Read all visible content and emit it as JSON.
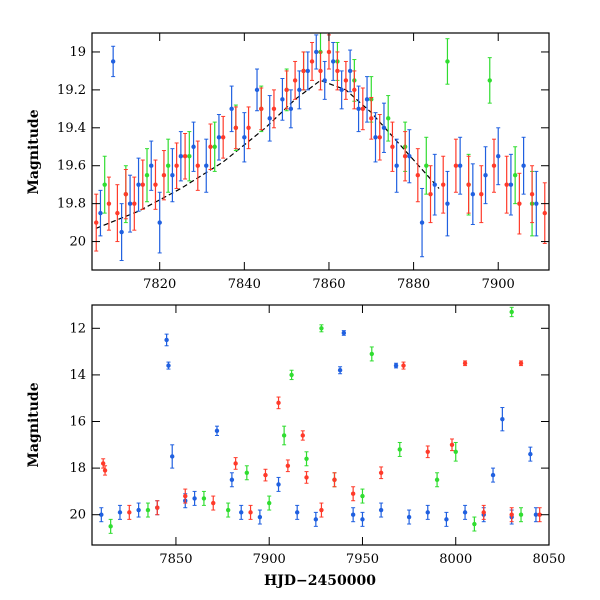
{
  "chart_data": [
    {
      "type": "scatter",
      "title": "",
      "xlabel": "",
      "ylabel": "Magnitude",
      "xlim": [
        7804,
        7912
      ],
      "ylim": [
        20.15,
        18.9
      ],
      "y_inverted": true,
      "grid": false,
      "x_ticks": [
        7820,
        7840,
        7860,
        7880,
        7900
      ],
      "x_tick_labels": [
        "7820",
        "7840",
        "7860",
        "7880",
        "7900"
      ],
      "y_ticks": [
        19,
        19.2,
        19.4,
        19.6,
        19.8,
        20
      ],
      "y_tick_labels": [
        "19",
        "19.2",
        "19.4",
        "19.6",
        "19.8",
        "20"
      ],
      "series": [
        {
          "color": "#2060e0",
          "x": [
            7806,
            7809,
            7811,
            7813,
            7815,
            7818,
            7820,
            7823,
            7825,
            7828,
            7831,
            7834,
            7837,
            7840,
            7843,
            7846,
            7849,
            7851,
            7853,
            7855,
            7857,
            7859,
            7861,
            7863,
            7865,
            7867,
            7869,
            7871,
            7873,
            7876,
            7879,
            7882,
            7885,
            7888,
            7891,
            7894,
            7897,
            7900,
            7903,
            7906,
            7909
          ],
          "y": [
            19.85,
            19.05,
            19.95,
            19.8,
            19.7,
            19.6,
            19.9,
            19.65,
            19.55,
            19.5,
            19.6,
            19.45,
            19.3,
            19.45,
            19.2,
            19.35,
            19.25,
            19.3,
            19.2,
            19.1,
            19.0,
            19.15,
            19.05,
            19.2,
            19.1,
            19.3,
            19.25,
            19.45,
            19.4,
            19.6,
            19.55,
            19.9,
            19.7,
            19.8,
            19.6,
            19.75,
            19.65,
            19.55,
            19.7,
            19.6,
            19.8
          ],
          "err": [
            0.12,
            0.08,
            0.15,
            0.15,
            0.14,
            0.13,
            0.16,
            0.14,
            0.13,
            0.13,
            0.14,
            0.12,
            0.12,
            0.13,
            0.11,
            0.12,
            0.11,
            0.1,
            0.1,
            0.1,
            0.09,
            0.1,
            0.1,
            0.1,
            0.11,
            0.12,
            0.12,
            0.13,
            0.13,
            0.14,
            0.14,
            0.18,
            0.16,
            0.17,
            0.15,
            0.16,
            0.15,
            0.15,
            0.16,
            0.15,
            0.17
          ]
        },
        {
          "color": "#30dd30",
          "x": [
            7807,
            7812,
            7817,
            7822,
            7827,
            7833,
            7838,
            7844,
            7850,
            7854,
            7858,
            7862,
            7866,
            7870,
            7874,
            7878,
            7883,
            7888,
            7893,
            7898,
            7904,
            7908
          ],
          "y": [
            19.7,
            19.75,
            19.65,
            19.6,
            19.55,
            19.5,
            19.4,
            19.3,
            19.2,
            19.1,
            19.0,
            19.05,
            19.15,
            19.25,
            19.35,
            19.5,
            19.6,
            19.05,
            19.7,
            19.15,
            19.65,
            19.8
          ],
          "err": [
            0.15,
            0.15,
            0.14,
            0.14,
            0.13,
            0.13,
            0.12,
            0.12,
            0.11,
            0.1,
            0.1,
            0.1,
            0.11,
            0.12,
            0.12,
            0.13,
            0.15,
            0.12,
            0.16,
            0.12,
            0.15,
            0.17
          ]
        },
        {
          "color": "#ff3a2a",
          "x": [
            7805,
            7808,
            7810,
            7812,
            7814,
            7816,
            7819,
            7821,
            7824,
            7826,
            7829,
            7832,
            7835,
            7838,
            7841,
            7844,
            7847,
            7850,
            7852,
            7854,
            7856,
            7858,
            7860,
            7862,
            7864,
            7866,
            7868,
            7870,
            7872,
            7875,
            7878,
            7881,
            7884,
            7887,
            7890,
            7893,
            7896,
            7899,
            7902,
            7905,
            7908,
            7911
          ],
          "y": [
            19.9,
            19.8,
            19.85,
            19.75,
            19.8,
            19.7,
            19.7,
            19.65,
            19.6,
            19.55,
            19.6,
            19.5,
            19.45,
            19.4,
            19.4,
            19.3,
            19.3,
            19.2,
            19.15,
            19.1,
            19.05,
            19.1,
            19.0,
            19.1,
            19.15,
            19.2,
            19.3,
            19.35,
            19.45,
            19.5,
            19.55,
            19.65,
            19.75,
            19.7,
            19.6,
            19.7,
            19.75,
            19.6,
            19.7,
            19.8,
            19.75,
            19.85
          ],
          "err": [
            0.15,
            0.14,
            0.15,
            0.13,
            0.14,
            0.13,
            0.13,
            0.13,
            0.12,
            0.12,
            0.13,
            0.12,
            0.11,
            0.11,
            0.11,
            0.11,
            0.1,
            0.1,
            0.1,
            0.1,
            0.1,
            0.1,
            0.09,
            0.1,
            0.1,
            0.1,
            0.11,
            0.11,
            0.12,
            0.13,
            0.13,
            0.14,
            0.15,
            0.15,
            0.14,
            0.15,
            0.15,
            0.14,
            0.15,
            0.16,
            0.15,
            0.16
          ]
        }
      ],
      "model_curve": {
        "color": "#000000",
        "x": [
          7805,
          7815,
          7825,
          7835,
          7845,
          7852,
          7858,
          7864,
          7870,
          7876,
          7882,
          7886
        ],
        "y": [
          19.93,
          19.84,
          19.72,
          19.58,
          19.4,
          19.25,
          19.15,
          19.2,
          19.32,
          19.47,
          19.62,
          19.72
        ]
      }
    },
    {
      "type": "scatter",
      "title": "",
      "xlabel": "HJD−2450000",
      "ylabel": "Magnitude",
      "xlim": [
        7805,
        8050
      ],
      "ylim": [
        21.3,
        11.0
      ],
      "y_inverted": true,
      "grid": false,
      "x_ticks": [
        7850,
        7900,
        7950,
        8000,
        8050
      ],
      "x_tick_labels": [
        "7850",
        "7900",
        "7950",
        "8000",
        "8050"
      ],
      "y_ticks": [
        12,
        14,
        16,
        18,
        20
      ],
      "y_tick_labels": [
        "12",
        "14",
        "16",
        "18",
        "20"
      ],
      "series": [
        {
          "color": "#2060e0",
          "x": [
            7810,
            7820,
            7830,
            7840,
            7845,
            7846,
            7848,
            7855,
            7860,
            7872,
            7880,
            7885,
            7895,
            7905,
            7915,
            7925,
            7938,
            7940,
            7945,
            7950,
            7960,
            7968,
            7975,
            7985,
            7995,
            8005,
            8015,
            8020,
            8025,
            8030,
            8040,
            8043
          ],
          "y": [
            20.0,
            19.9,
            19.8,
            19.7,
            12.5,
            13.6,
            17.5,
            19.4,
            19.3,
            16.4,
            18.5,
            19.9,
            20.1,
            18.7,
            19.9,
            20.2,
            13.8,
            12.2,
            20.0,
            20.2,
            19.8,
            13.6,
            20.1,
            19.9,
            20.2,
            19.9,
            20.0,
            18.3,
            15.9,
            20.1,
            17.4,
            20.0
          ],
          "err": [
            0.3,
            0.3,
            0.3,
            0.3,
            0.25,
            0.15,
            0.5,
            0.3,
            0.3,
            0.2,
            0.3,
            0.3,
            0.3,
            0.3,
            0.3,
            0.3,
            0.15,
            0.1,
            0.3,
            0.3,
            0.3,
            0.1,
            0.3,
            0.3,
            0.3,
            0.3,
            0.3,
            0.3,
            0.5,
            0.3,
            0.3,
            0.3
          ]
        },
        {
          "color": "#30dd30",
          "x": [
            7815,
            7835,
            7865,
            7878,
            7888,
            7900,
            7908,
            7912,
            7920,
            7928,
            7935,
            7950,
            7955,
            7970,
            7990,
            8000,
            8010,
            8030,
            8035
          ],
          "y": [
            20.5,
            19.8,
            19.3,
            19.8,
            18.2,
            19.5,
            16.6,
            14.0,
            17.6,
            12.0,
            18.5,
            19.2,
            13.1,
            17.2,
            18.5,
            17.3,
            20.4,
            11.3,
            20.0
          ],
          "err": [
            0.3,
            0.3,
            0.3,
            0.3,
            0.3,
            0.3,
            0.4,
            0.2,
            0.3,
            0.15,
            0.3,
            0.3,
            0.3,
            0.3,
            0.3,
            0.4,
            0.3,
            0.2,
            0.3
          ]
        },
        {
          "color": "#ff3a2a",
          "x": [
            7811,
            7812,
            7825,
            7840,
            7855,
            7870,
            7882,
            7890,
            7898,
            7905,
            7910,
            7918,
            7920,
            7928,
            7935,
            7945,
            7960,
            7972,
            7985,
            7998,
            8005,
            8015,
            8030,
            8035,
            8045
          ],
          "y": [
            17.8,
            18.1,
            19.9,
            19.7,
            19.2,
            19.5,
            17.8,
            19.9,
            18.3,
            15.2,
            17.9,
            16.6,
            18.4,
            19.8,
            18.5,
            19.1,
            18.2,
            13.6,
            17.3,
            17.0,
            13.5,
            19.9,
            20.0,
            13.5,
            20.0
          ],
          "err": [
            0.2,
            0.2,
            0.3,
            0.3,
            0.3,
            0.3,
            0.25,
            0.3,
            0.25,
            0.25,
            0.25,
            0.2,
            0.25,
            0.3,
            0.3,
            0.3,
            0.25,
            0.15,
            0.25,
            0.25,
            0.1,
            0.3,
            0.3,
            0.1,
            0.3
          ]
        }
      ]
    }
  ]
}
